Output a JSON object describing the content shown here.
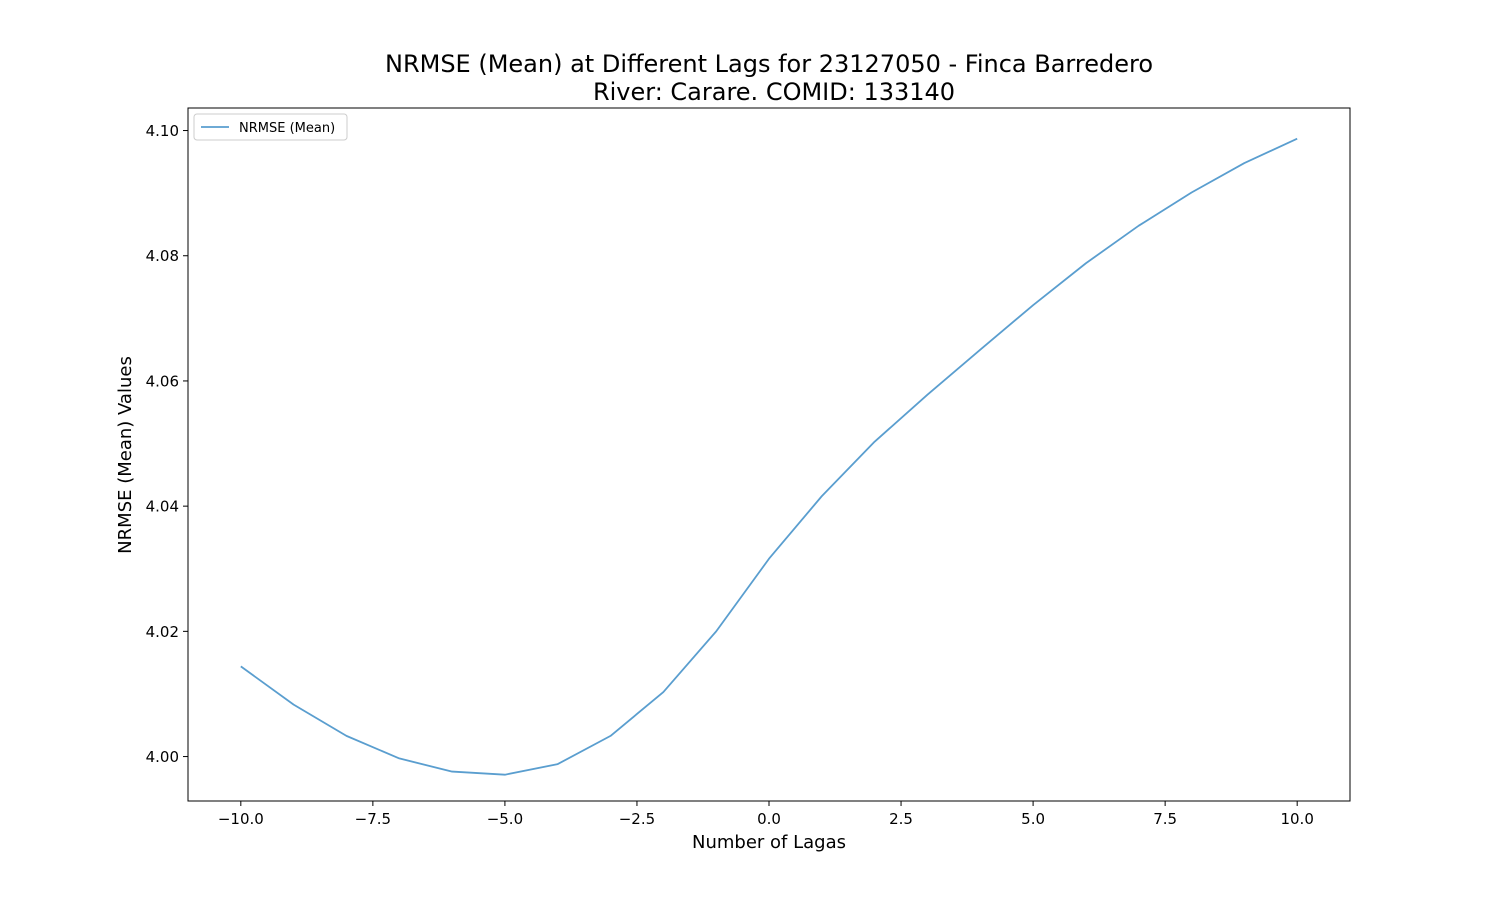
{
  "chart_data": {
    "type": "line",
    "title_line1": "NRMSE (Mean) at Different Lags for 23127050 - Finca Barredero",
    "title_line2": "River: Carare. COMID: 133140",
    "xlabel": "Number of Lagas",
    "ylabel": "NRMSE (Mean) Values",
    "xlim": [
      -11,
      11
    ],
    "ylim": [
      3.9929,
      4.1036
    ],
    "x_ticks": [
      -10.0,
      -7.5,
      -5.0,
      -2.5,
      0.0,
      2.5,
      5.0,
      7.5,
      10.0
    ],
    "x_tick_labels": [
      "−10.0",
      "−7.5",
      "−5.0",
      "−2.5",
      "0.0",
      "2.5",
      "5.0",
      "7.5",
      "10.0"
    ],
    "y_ticks": [
      4.0,
      4.02,
      4.04,
      4.06,
      4.08,
      4.1
    ],
    "y_tick_labels": [
      "4.00",
      "4.02",
      "4.04",
      "4.06",
      "4.08",
      "4.10"
    ],
    "grid": false,
    "legend_position": "top-left",
    "series": [
      {
        "name": "NRMSE (Mean)",
        "color": "#5a9ecf",
        "x": [
          -10,
          -9,
          -8,
          -7,
          -6,
          -5,
          -4,
          -3,
          -2,
          -1,
          0,
          1,
          2,
          3,
          4,
          5,
          6,
          7,
          8,
          9,
          10
        ],
        "values": [
          4.0144,
          4.0083,
          4.0033,
          3.9997,
          3.9976,
          3.9971,
          3.9988,
          4.0033,
          4.0103,
          4.02,
          4.0316,
          4.0416,
          4.0503,
          4.0578,
          4.065,
          4.0721,
          4.0788,
          4.0848,
          4.0901,
          4.0948,
          4.0987
        ]
      }
    ]
  }
}
